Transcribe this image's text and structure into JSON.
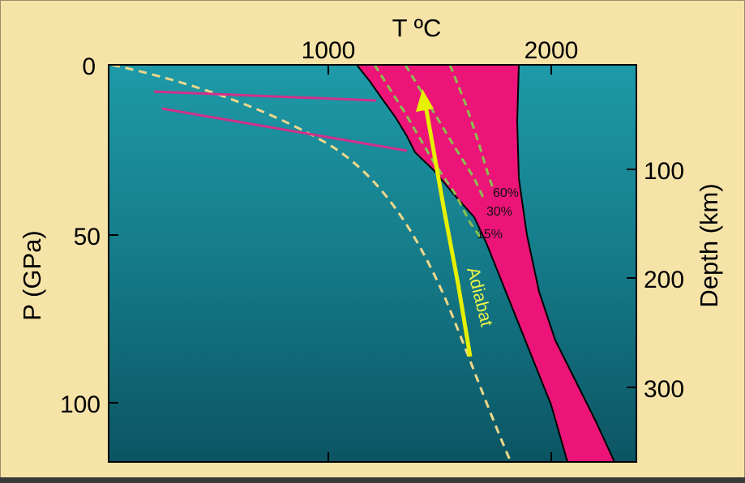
{
  "diagram": {
    "top_axis_title": "T ºC",
    "left_axis_title": "P (GPa)",
    "right_axis_title": "Depth (km)",
    "top_ticks": [
      "1000",
      "2000"
    ],
    "left_ticks": [
      "0",
      "50",
      "100"
    ],
    "right_ticks": [
      "100",
      "200",
      "300"
    ],
    "melt_labels": [
      "60%",
      "30%",
      "15%"
    ],
    "adiabat_label": "Adiabat",
    "colors": {
      "background_top": "#1e9aa8",
      "background_bottom": "#0f5a68",
      "melt_region": "#ec1478",
      "geotherm": "#f0d88a",
      "melt_isopleths": "#8ac050",
      "adiabat": "#e6f000",
      "lithosphere_lines": "#d0308a",
      "frame": "#f6e3a8"
    }
  }
}
